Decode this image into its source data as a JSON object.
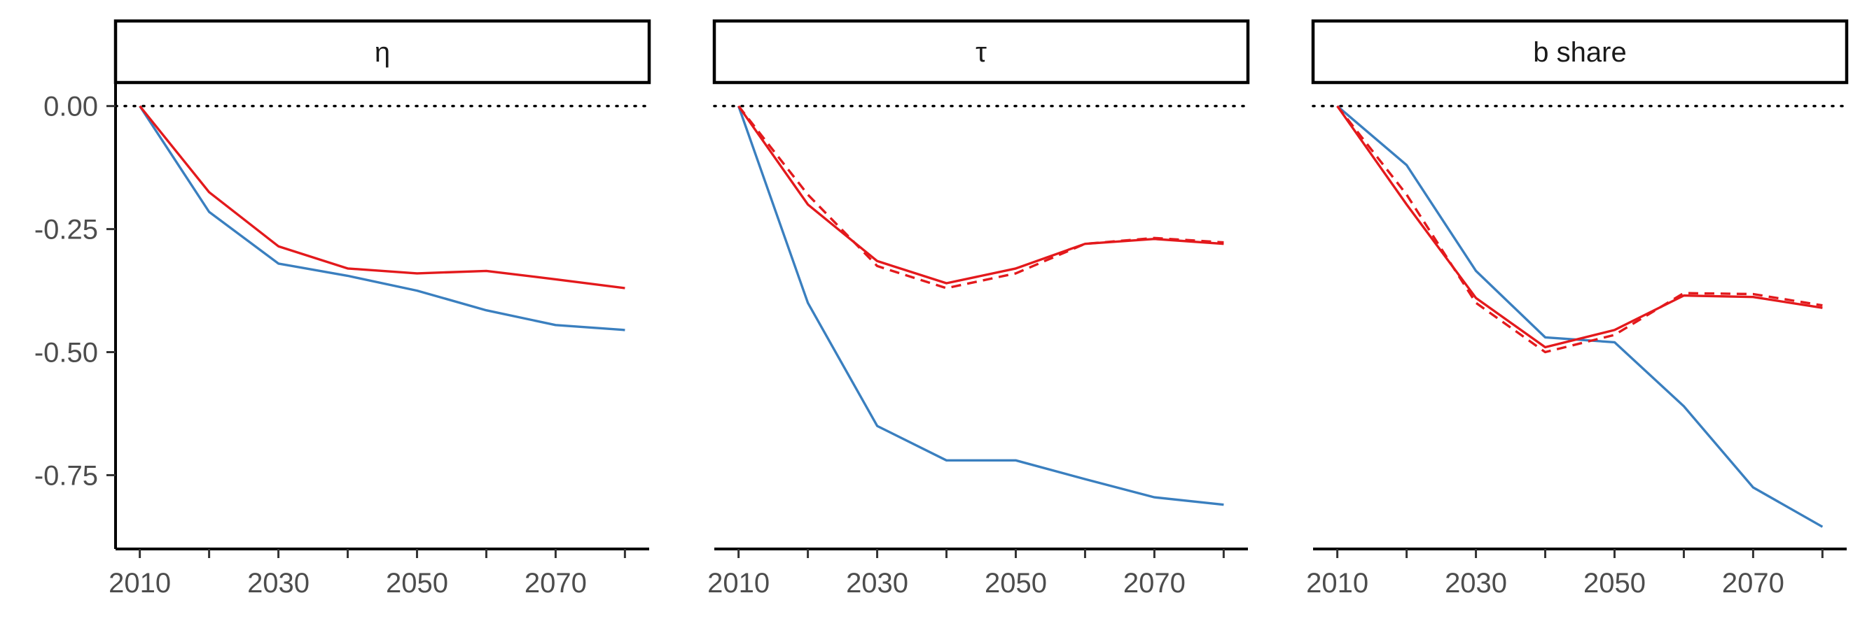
{
  "colors": {
    "blue": "#3a7fbf",
    "red": "#e3191c"
  },
  "chart_data": {
    "type": "line",
    "layout": "facet",
    "grid": false,
    "x_ticks": [
      2010,
      2030,
      2050,
      2070
    ],
    "x_minor_ticks": [
      2020,
      2040,
      2060,
      2080
    ],
    "y_ticks": [
      0.0,
      -0.25,
      -0.5,
      -0.75
    ],
    "y_tick_labels": [
      "0.00",
      "-0.25",
      "-0.50",
      "-0.75"
    ],
    "xlim": [
      2006.5,
      2083.5
    ],
    "ylim": [
      -0.9,
      0.045
    ],
    "reference_line": {
      "y": 0,
      "style": "dotted"
    },
    "panels": [
      {
        "title": "η",
        "series": [
          {
            "color": "blue",
            "dash": "solid",
            "x": [
              2010,
              2020,
              2030,
              2040,
              2050,
              2060,
              2070,
              2080
            ],
            "y": [
              0.0,
              -0.215,
              -0.32,
              -0.345,
              -0.375,
              -0.415,
              -0.445,
              -0.455
            ]
          },
          {
            "color": "red",
            "dash": "solid",
            "x": [
              2010,
              2020,
              2030,
              2040,
              2050,
              2060,
              2070,
              2080
            ],
            "y": [
              0.0,
              -0.175,
              -0.285,
              -0.33,
              -0.34,
              -0.335,
              -0.352,
              -0.37
            ]
          }
        ]
      },
      {
        "title": "τ",
        "series": [
          {
            "color": "blue",
            "dash": "solid",
            "x": [
              2010,
              2020,
              2030,
              2040,
              2050,
              2060,
              2070,
              2080
            ],
            "y": [
              0.0,
              -0.4,
              -0.65,
              -0.72,
              -0.72,
              -0.758,
              -0.795,
              -0.81
            ]
          },
          {
            "color": "red",
            "dash": "solid",
            "x": [
              2010,
              2020,
              2030,
              2040,
              2050,
              2060,
              2070,
              2080
            ],
            "y": [
              0.0,
              -0.2,
              -0.315,
              -0.36,
              -0.33,
              -0.28,
              -0.27,
              -0.28
            ]
          },
          {
            "color": "red",
            "dash": "dashed",
            "x": [
              2010,
              2020,
              2030,
              2040,
              2050,
              2060,
              2070,
              2080
            ],
            "y": [
              0.0,
              -0.18,
              -0.325,
              -0.37,
              -0.34,
              -0.28,
              -0.268,
              -0.277
            ]
          }
        ]
      },
      {
        "title": "b share",
        "series": [
          {
            "color": "blue",
            "dash": "solid",
            "x": [
              2010,
              2020,
              2030,
              2040,
              2050,
              2060,
              2070,
              2080
            ],
            "y": [
              0.0,
              -0.12,
              -0.335,
              -0.47,
              -0.48,
              -0.61,
              -0.775,
              -0.855
            ]
          },
          {
            "color": "red",
            "dash": "solid",
            "x": [
              2010,
              2020,
              2030,
              2040,
              2050,
              2060,
              2070,
              2080
            ],
            "y": [
              0.0,
              -0.2,
              -0.39,
              -0.49,
              -0.455,
              -0.385,
              -0.388,
              -0.41
            ]
          },
          {
            "color": "red",
            "dash": "dashed",
            "x": [
              2010,
              2020,
              2030,
              2040,
              2050,
              2060,
              2070,
              2080
            ],
            "y": [
              0.0,
              -0.18,
              -0.4,
              -0.5,
              -0.465,
              -0.38,
              -0.382,
              -0.405
            ]
          }
        ]
      }
    ]
  }
}
